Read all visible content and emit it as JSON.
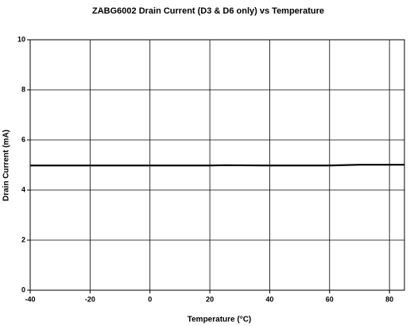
{
  "chart_data": {
    "type": "line",
    "title": "ZABG6002 Drain Current (D3 & D6 only) vs Temperature",
    "x_label": "Temperature (°C)",
    "y_label": "Drain Current (mA)",
    "x": [
      -40,
      -20,
      0,
      20,
      25,
      40,
      60,
      70,
      85
    ],
    "series": [
      {
        "name": "Drain Current",
        "color": "#000000",
        "values": [
          4.98,
          4.98,
          4.98,
          4.98,
          4.99,
          4.98,
          4.98,
          5.01,
          5.01
        ]
      }
    ],
    "xlim": [
      -40,
      85
    ],
    "xticks": [
      -40,
      -20,
      0,
      20,
      40,
      60,
      80
    ],
    "ylim": [
      0,
      10
    ],
    "yticks": [
      0,
      2,
      4,
      6,
      8,
      10
    ],
    "grid": true
  }
}
